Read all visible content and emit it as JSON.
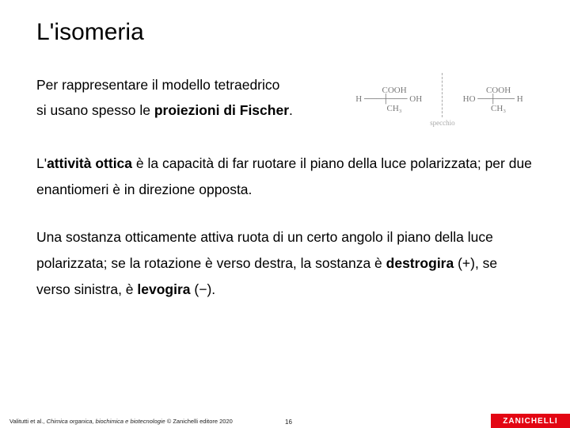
{
  "title": "L'isomeria",
  "row1": {
    "line1": "Per rappresentare il modello tetraedrico",
    "line2_a": "si usano spesso le ",
    "line2_b": "proiezioni di Fischer",
    "line2_c": "."
  },
  "fischer": {
    "left": {
      "l1": "     COOH",
      "l2": "H ───┼─── OH",
      "l3": "     CH₃"
    },
    "right": {
      "l1": "     COOH",
      "l2": "HO ──┼─── H",
      "l3": "     CH₃"
    },
    "mirror_label": "specchio"
  },
  "para1": {
    "a": "L'",
    "b": "attività ottica",
    "c": " è la capacità di far ruotare il piano della luce polarizzata; per due enantiomeri è in direzione opposta."
  },
  "para2": {
    "a": "Una sostanza otticamente attiva ruota di un certo angolo il piano della luce polarizzata; se la rotazione è verso destra, la sostanza è ",
    "b": "destrogira",
    "c": " (+), se verso sinistra, è ",
    "d": "levogira",
    "e": " (−)."
  },
  "footer": {
    "credit_a": "Valitutti et al., ",
    "credit_b": "Chimica organica, biochimica e biotecnologie",
    "credit_c": " © Zanichelli editore 2020",
    "page": "16",
    "logo": "ZANICHELLI"
  },
  "style": {
    "title_fontsize": 30,
    "body_fontsize": 17.5,
    "line_height": 1.9,
    "logo_bg": "#e30613",
    "logo_fg": "#ffffff",
    "fischer_color": "#777777",
    "footer_fontsize": 7.5
  }
}
